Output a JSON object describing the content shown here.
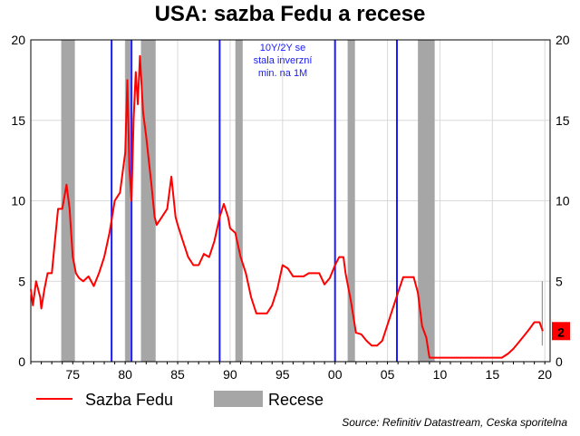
{
  "chart_data": {
    "type": "line",
    "title": "USA: sazba Fedu a recese",
    "x_ticks": [
      "75",
      "80",
      "85",
      "90",
      "95",
      "00",
      "05",
      "10",
      "15",
      "20"
    ],
    "x_tick_years": [
      1975,
      1980,
      1985,
      1990,
      1995,
      2000,
      2005,
      2010,
      2015,
      2020
    ],
    "y_ticks": [
      "0",
      "5",
      "10",
      "15",
      "20"
    ],
    "ylim": [
      0,
      20
    ],
    "xlim": [
      1971,
      2020.5
    ],
    "grid": true,
    "series": [
      {
        "name": "Sazba Fedu",
        "color": "#ff0000",
        "points": [
          [
            1971.0,
            4.5
          ],
          [
            1971.2,
            3.5
          ],
          [
            1971.5,
            5.0
          ],
          [
            1971.7,
            4.5
          ],
          [
            1971.9,
            4.0
          ],
          [
            1972.0,
            3.3
          ],
          [
            1972.3,
            4.5
          ],
          [
            1972.6,
            5.5
          ],
          [
            1973.0,
            5.5
          ],
          [
            1973.3,
            7.5
          ],
          [
            1973.6,
            9.5
          ],
          [
            1974.0,
            9.5
          ],
          [
            1974.4,
            11.0
          ],
          [
            1974.7,
            9.5
          ],
          [
            1975.0,
            6.5
          ],
          [
            1975.3,
            5.5
          ],
          [
            1975.6,
            5.2
          ],
          [
            1976.0,
            5.0
          ],
          [
            1976.5,
            5.3
          ],
          [
            1977.0,
            4.7
          ],
          [
            1977.5,
            5.5
          ],
          [
            1978.0,
            6.5
          ],
          [
            1978.5,
            8.0
          ],
          [
            1979.0,
            10.0
          ],
          [
            1979.5,
            10.5
          ],
          [
            1980.0,
            13.0
          ],
          [
            1980.2,
            17.5
          ],
          [
            1980.4,
            12.0
          ],
          [
            1980.6,
            10.0
          ],
          [
            1980.8,
            15.0
          ],
          [
            1981.0,
            18.0
          ],
          [
            1981.2,
            16.0
          ],
          [
            1981.4,
            19.0
          ],
          [
            1981.7,
            15.5
          ],
          [
            1982.0,
            14.0
          ],
          [
            1982.5,
            11.0
          ],
          [
            1982.8,
            9.0
          ],
          [
            1983.0,
            8.5
          ],
          [
            1983.5,
            9.0
          ],
          [
            1984.0,
            9.5
          ],
          [
            1984.4,
            11.5
          ],
          [
            1984.8,
            9.0
          ],
          [
            1985.0,
            8.5
          ],
          [
            1985.5,
            7.5
          ],
          [
            1986.0,
            6.5
          ],
          [
            1986.5,
            6.0
          ],
          [
            1987.0,
            6.0
          ],
          [
            1987.5,
            6.7
          ],
          [
            1988.0,
            6.5
          ],
          [
            1988.5,
            7.5
          ],
          [
            1989.0,
            9.0
          ],
          [
            1989.4,
            9.8
          ],
          [
            1989.8,
            9.0
          ],
          [
            1990.0,
            8.3
          ],
          [
            1990.5,
            8.0
          ],
          [
            1991.0,
            6.5
          ],
          [
            1991.5,
            5.5
          ],
          [
            1992.0,
            4.0
          ],
          [
            1992.5,
            3.0
          ],
          [
            1993.0,
            3.0
          ],
          [
            1993.5,
            3.0
          ],
          [
            1994.0,
            3.5
          ],
          [
            1994.5,
            4.5
          ],
          [
            1995.0,
            6.0
          ],
          [
            1995.5,
            5.8
          ],
          [
            1996.0,
            5.3
          ],
          [
            1996.5,
            5.3
          ],
          [
            1997.0,
            5.3
          ],
          [
            1997.5,
            5.5
          ],
          [
            1998.0,
            5.5
          ],
          [
            1998.5,
            5.5
          ],
          [
            1999.0,
            4.8
          ],
          [
            1999.5,
            5.2
          ],
          [
            2000.0,
            6.0
          ],
          [
            2000.4,
            6.5
          ],
          [
            2000.8,
            6.5
          ],
          [
            2001.0,
            5.5
          ],
          [
            2001.5,
            3.8
          ],
          [
            2002.0,
            1.8
          ],
          [
            2002.5,
            1.7
          ],
          [
            2003.0,
            1.3
          ],
          [
            2003.5,
            1.0
          ],
          [
            2004.0,
            1.0
          ],
          [
            2004.5,
            1.3
          ],
          [
            2005.0,
            2.3
          ],
          [
            2005.5,
            3.3
          ],
          [
            2006.0,
            4.3
          ],
          [
            2006.5,
            5.25
          ],
          [
            2007.0,
            5.25
          ],
          [
            2007.5,
            5.25
          ],
          [
            2007.9,
            4.3
          ],
          [
            2008.3,
            2.2
          ],
          [
            2008.7,
            1.5
          ],
          [
            2009.0,
            0.25
          ],
          [
            2010.0,
            0.25
          ],
          [
            2012.0,
            0.25
          ],
          [
            2014.0,
            0.25
          ],
          [
            2015.9,
            0.25
          ],
          [
            2016.5,
            0.5
          ],
          [
            2017.0,
            0.8
          ],
          [
            2017.5,
            1.2
          ],
          [
            2018.0,
            1.6
          ],
          [
            2018.5,
            2.0
          ],
          [
            2019.0,
            2.45
          ],
          [
            2019.5,
            2.45
          ],
          [
            2019.8,
            1.9
          ]
        ]
      }
    ],
    "recessions": [
      [
        1973.9,
        1975.2
      ],
      [
        1980.0,
        1980.5
      ],
      [
        1981.5,
        1982.9
      ],
      [
        1990.5,
        1991.2
      ],
      [
        2001.2,
        2001.9
      ],
      [
        2007.9,
        2009.5
      ]
    ],
    "blue_lines": [
      1978.7,
      1980.6,
      1989.0,
      2000.0,
      2005.9
    ],
    "last_value_label": "2",
    "annotation": [
      "10Y/2Y se",
      "stala inverzní",
      "min. na 1M"
    ],
    "legend": {
      "placement": "bottom",
      "items": [
        {
          "label": "Sazba Fedu",
          "type": "line",
          "color": "#ff0000"
        },
        {
          "label": "Recese",
          "type": "band",
          "color": "#a6a6a6"
        }
      ]
    },
    "source": "Source: Refinitiv Datastream, Ceska sporitelna",
    "colors": {
      "line": "#ff0000",
      "recession": "#a6a6a6",
      "marker_line": "#1a1aff",
      "grid": "#d9d9d9",
      "label_box": "#ff0000"
    }
  }
}
